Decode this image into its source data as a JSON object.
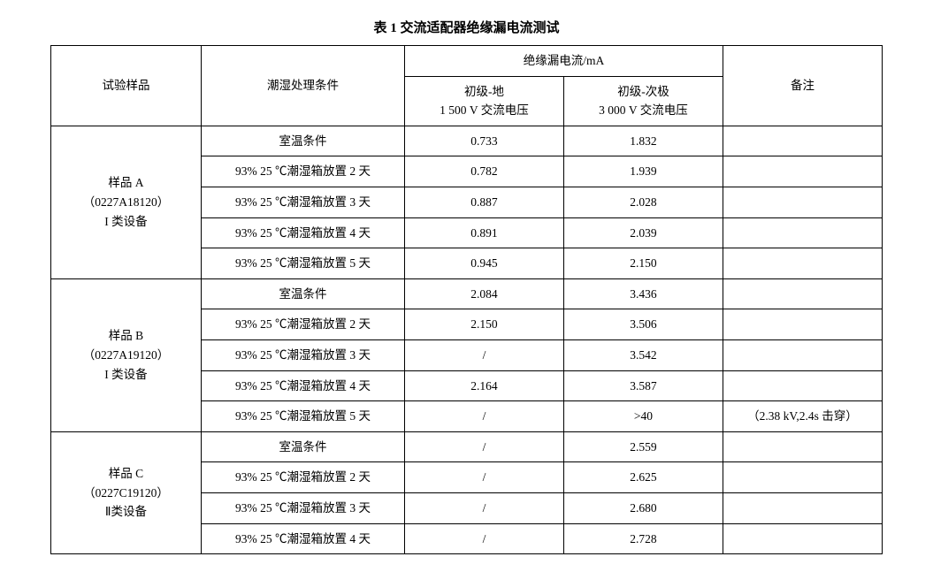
{
  "table": {
    "title": "表 1  交流适配器绝缘漏电流测试",
    "header": {
      "sample": "试验样品",
      "condition": "潮湿处理条件",
      "leak_group": "绝缘漏电流/mA",
      "leak_primary_gnd_line1": "初级-地",
      "leak_primary_gnd_line2": "1 500 V 交流电压",
      "leak_primary_sec_line1": "初级-次极",
      "leak_primary_sec_line2": "3 000 V 交流电压",
      "note": "备注"
    },
    "groups": [
      {
        "sample_line1": "样品 A",
        "sample_line2": "（0227A18120）",
        "sample_line3": "I 类设备",
        "rows": [
          {
            "cond": "室温条件",
            "v1": "0.733",
            "v2": "1.832",
            "note": ""
          },
          {
            "cond": "93% 25 ℃潮湿箱放置 2 天",
            "v1": "0.782",
            "v2": "1.939",
            "note": ""
          },
          {
            "cond": "93% 25 ℃潮湿箱放置 3 天",
            "v1": "0.887",
            "v2": "2.028",
            "note": ""
          },
          {
            "cond": "93% 25 ℃潮湿箱放置 4 天",
            "v1": "0.891",
            "v2": "2.039",
            "note": ""
          },
          {
            "cond": "93% 25 ℃潮湿箱放置 5 天",
            "v1": "0.945",
            "v2": "2.150",
            "note": ""
          }
        ]
      },
      {
        "sample_line1": "样品 B",
        "sample_line2": "（0227A19120）",
        "sample_line3": "I 类设备",
        "rows": [
          {
            "cond": "室温条件",
            "v1": "2.084",
            "v2": "3.436",
            "note": ""
          },
          {
            "cond": "93% 25 ℃潮湿箱放置 2 天",
            "v1": "2.150",
            "v2": "3.506",
            "note": ""
          },
          {
            "cond": "93% 25 ℃潮湿箱放置 3 天",
            "v1": "/",
            "v2": "3.542",
            "note": ""
          },
          {
            "cond": "93% 25 ℃潮湿箱放置 4 天",
            "v1": "2.164",
            "v2": "3.587",
            "note": ""
          },
          {
            "cond": "93% 25 ℃潮湿箱放置 5 天",
            "v1": "/",
            "v2": ">40",
            "note": "（2.38 kV,2.4s 击穿）"
          }
        ]
      },
      {
        "sample_line1": "样品 C",
        "sample_line2": "（0227C19120）",
        "sample_line3": "Ⅱ类设备",
        "rows": [
          {
            "cond": "室温条件",
            "v1": "/",
            "v2": "2.559",
            "note": ""
          },
          {
            "cond": "93% 25 ℃潮湿箱放置 2 天",
            "v1": "/",
            "v2": "2.625",
            "note": ""
          },
          {
            "cond": "93% 25 ℃潮湿箱放置 3 天",
            "v1": "/",
            "v2": "2.680",
            "note": ""
          },
          {
            "cond": "93% 25 ℃潮湿箱放置 4 天",
            "v1": "/",
            "v2": "2.728",
            "note": ""
          }
        ]
      }
    ]
  }
}
